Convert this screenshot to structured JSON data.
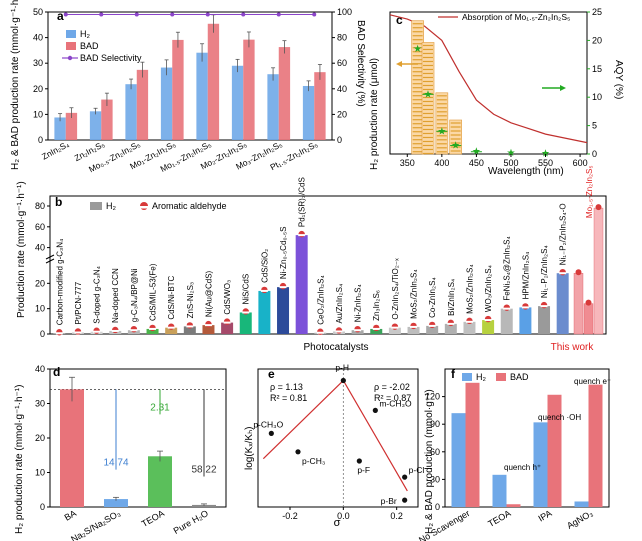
{
  "chart_data": [
    {
      "panel": "a",
      "type": "bar",
      "ylabel": "H₂ & BAD production rate (mmol·g⁻¹·h⁻¹)",
      "y2label": "BAD Selectivity (%)",
      "ylim": [
        0,
        50
      ],
      "y2lim": [
        0,
        100
      ],
      "yticks": [
        "0",
        "10",
        "20",
        "30",
        "40",
        "50"
      ],
      "y2ticks": [
        "0",
        "20",
        "40",
        "60",
        "80",
        "100"
      ],
      "legend": [
        "H₂",
        "BAD",
        "BAD Selectivity"
      ],
      "categories": [
        "ZnIn₂S₄",
        "Zn₂In₂S₅",
        "Mo₀.₅-Zn₂In₂S₅",
        "Mo₁-Zn₂In₂S₅",
        "Mo₁.₅-Zn₂In₂S₅",
        "Mo₂-Zn₂In₂S₅",
        "Mo₃-Zn₂In₂S₅",
        "Pt₁.₅-Zn₂In₂S₅"
      ],
      "series": [
        {
          "name": "H₂",
          "color": "#6fa8e8",
          "values": [
            8.8,
            11.2,
            21.8,
            28.3,
            34.1,
            29.0,
            25.7,
            21.1
          ],
          "errors": [
            1.5,
            1.2,
            2.0,
            3.0,
            3.5,
            2.5,
            2.5,
            2.0
          ]
        },
        {
          "name": "BAD",
          "color": "#e8737a",
          "values": [
            10.6,
            15.8,
            27.4,
            39.1,
            45.4,
            39.2,
            36.3,
            26.5
          ],
          "errors": [
            2.0,
            2.5,
            3.0,
            3.0,
            3.5,
            3.0,
            2.5,
            3.0
          ]
        },
        {
          "name": "BAD Selectivity",
          "color": "#8b45c9",
          "values": [
            98,
            98,
            98,
            98,
            98,
            98,
            98,
            98
          ]
        }
      ]
    },
    {
      "panel": "c",
      "type": "line",
      "xlabel": "Wavelength (nm)",
      "ylabel": "H₂ production rate (μmol)",
      "y2label": "AQY (%)",
      "legend": "Absorption of Mo₁.₅-Zn₂In₂S₅",
      "xlim": [
        325,
        610
      ],
      "y2lim": [
        0,
        25
      ],
      "xticks": [
        "350",
        "400",
        "450",
        "500",
        "550",
        "600"
      ],
      "y2ticks": [
        "0",
        "5",
        "10",
        "15",
        "20",
        "25"
      ],
      "aqy_x": [
        365,
        380,
        400,
        420,
        450,
        500,
        550
      ],
      "aqy_y": [
        18.5,
        10.5,
        4.0,
        1.5,
        0.4,
        0.2,
        0.1
      ],
      "aqy_xerr": [
        0,
        8,
        8,
        8,
        8,
        0,
        0
      ],
      "bar_wavelengths": [
        365,
        380,
        400,
        420
      ],
      "bar_values": [
        0.98,
        0.82,
        0.45,
        0.25
      ],
      "absorption_x": [
        325,
        350,
        375,
        400,
        425,
        450,
        475,
        500,
        550,
        610
      ],
      "absorption_y": [
        0.98,
        0.95,
        0.9,
        0.8,
        0.58,
        0.38,
        0.28,
        0.22,
        0.14,
        0.08
      ]
    },
    {
      "panel": "b",
      "type": "bar",
      "xlabel": "Photocatalysts",
      "ylabel": "Production rate (mmol·g⁻¹·h⁻¹)",
      "yticks_lower": [
        "0",
        "10",
        "20"
      ],
      "yticks_upper": [
        "40",
        "60",
        "80"
      ],
      "legend": [
        "H₂",
        "Aromatic aldehyde"
      ],
      "annotation": "This work",
      "categories": [
        "Carbon-modified g-C₃N₄",
        "Pt/PCN-777",
        "S-doped g-C₃N₄",
        "Na-doped CCN",
        "g-C₃N₄/BP@Ni",
        "CdS/MIL-53(Fe)",
        "CdS/Ni-BTC",
        "ZnS-Ni₂S₃",
        "Ni(Au@CdS)",
        "CdS/WO₃",
        "NiS/CdS",
        "CdS/SiO₂",
        "Ni-Zn₀.₅Cd₀.₅S",
        "Pd₁(SR)₃/CdS",
        "CeO₂/ZnIn₂S₄",
        "Au/ZnIn₂S₄",
        "Ni-ZnIn₂S₄",
        "Zn₃In₂S₆",
        "O-ZnIn₂S₄/TiO₂₋ₓ",
        "MoS₂/ZnIn₂S₄",
        "Co-ZnIn₂S₄",
        "Bi/ZnIn₂S₄",
        "MoS₂/ZnIn₂S₄",
        "WO₃/ZnIn₂S₄",
        "FeNi₂S₄@ZnIn₂S₄",
        "HPM/ZnIn₂S₄",
        "Ni₁₋P₂/ZnIn₂S₄",
        "Ni₁₋P₂/ZnIn₂S₄-O",
        "Mo₁.₅-Zn₂In₂S₅"
      ],
      "values": [
        0.3,
        0.6,
        0.9,
        1.2,
        1.5,
        2.0,
        2.5,
        3.0,
        3.5,
        4.5,
        8.5,
        17,
        18.5,
        52,
        0.5,
        1.0,
        1.5,
        2.0,
        2.5,
        2.8,
        3.2,
        4.0,
        4.8,
        5.5,
        10.0,
        10.5,
        11.0,
        24.0,
        34.1
      ],
      "aldehyde": [
        0.3,
        0.6,
        0.9,
        1.2,
        1.5,
        2.0,
        2.5,
        3.0,
        3.5,
        4.5,
        8.5,
        17,
        18.5,
        52,
        0.5,
        1.0,
        1.5,
        2.0,
        2.5,
        2.8,
        3.2,
        4.0,
        4.8,
        5.5,
        10.0,
        10.5,
        11.0,
        24.0,
        45.4
      ],
      "this_work_bars": [
        24.0,
        12.0,
        78.0
      ],
      "colors": [
        "#9b9b9b",
        "#c8c8c8",
        "#d4d4d4",
        "#c0c0c0",
        "#b6b6b6",
        "#4bb34b",
        "#c9a05a",
        "#7b7b7b",
        "#b45a3a",
        "#a64a6a",
        "#18b77a",
        "#18b2c8",
        "#2c4a9a",
        "#7c52d9",
        "#b6b6b6",
        "#c8c8c8",
        "#a8a8a8",
        "#3aa35a",
        "#c8c8c8",
        "#bdbdbd",
        "#a8a8a8",
        "#b0b0b0",
        "#c0c0c0",
        "#b7d13f",
        "#b8b8b8",
        "#5aa0e6",
        "#9a9a9a",
        "#6b8cce",
        "#f2a3a8"
      ]
    },
    {
      "panel": "d",
      "type": "bar",
      "ylabel": "H₂ production rate (mmol·g⁻¹·h⁻¹)",
      "ylim": [
        0,
        40
      ],
      "yticks": [
        "0",
        "10",
        "20",
        "30",
        "40"
      ],
      "categories": [
        "BA",
        "Na₂S/Na₂SO₃",
        "TEOA",
        "Pure H₂O"
      ],
      "values": [
        34.1,
        2.3,
        14.7,
        0.6
      ],
      "errors": [
        3.5,
        0.5,
        1.5,
        0.3
      ],
      "colors": [
        "#e8737a",
        "#6fa8e8",
        "#5bbf5b",
        "#8a8a8a"
      ],
      "annotations": [
        {
          "text": "14.74",
          "color": "#3d7fd0"
        },
        {
          "text": "2.31",
          "color": "#36a836"
        },
        {
          "text": "58.22",
          "color": "#333333"
        }
      ]
    },
    {
      "panel": "e",
      "type": "scatter",
      "xlabel": "σ",
      "ylabel": "log(Kₓ/Kₕ)",
      "xlim": [
        -0.32,
        0.28
      ],
      "ylim": [
        -0.55,
        0.05
      ],
      "xticks": [
        "-0.2",
        "0.0",
        "0.2"
      ],
      "x": [
        -0.27,
        -0.17,
        0.0,
        0.06,
        0.12,
        0.23,
        0.23
      ],
      "y": [
        -0.23,
        -0.31,
        0.0,
        -0.35,
        -0.13,
        -0.42,
        -0.52
      ],
      "point_labels": [
        "p-CH₃O",
        "p-CH₃",
        "p-H",
        "p-F",
        "m-CH₃O",
        "p-Cl",
        "p-Br"
      ],
      "fits": [
        {
          "rho": "ρ = 1.13",
          "r2": "R² = 0.81"
        },
        {
          "rho": "ρ = -2.02",
          "r2": "R² = 0.87"
        }
      ]
    },
    {
      "panel": "f",
      "type": "bar",
      "ylabel": "H₂ & BAD production (mmol·g⁻¹)",
      "ylim": [
        0,
        150
      ],
      "yticks": [
        "0",
        "30",
        "60",
        "90",
        "120"
      ],
      "legend": [
        "H₂",
        "BAD"
      ],
      "categories": [
        "No Scavenger",
        "TEOA",
        "IPA",
        "AgNO₃"
      ],
      "series": [
        {
          "name": "H₂",
          "color": "#6fa8e8",
          "values": [
            102,
            35,
            92,
            6
          ]
        },
        {
          "name": "BAD",
          "color": "#e8737a",
          "values": [
            135,
            3,
            122,
            133
          ]
        }
      ],
      "annotations": [
        "quench h⁺",
        "quench ·OH",
        "quench e⁻"
      ]
    }
  ]
}
